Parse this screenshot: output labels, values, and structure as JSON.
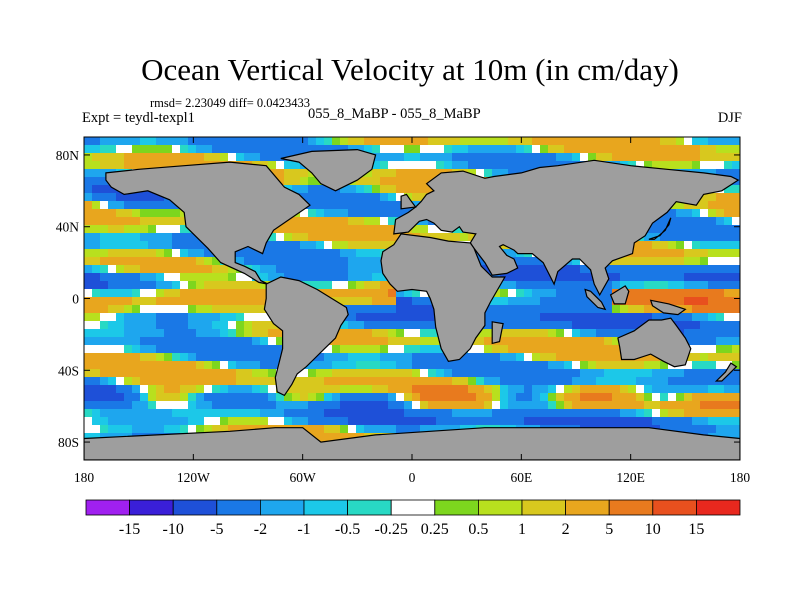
{
  "title": "Ocean Vertical Velocity at 10m (in cm/day)",
  "stats": "rmsd= 2.23049 diff= 0.0423433",
  "experiment": "Expt = teydl-texpl1",
  "difference": "055_8_MaBP - 055_8_MaBP",
  "season": "DJF",
  "axes": {
    "lat_ticks": [
      {
        "value": 80,
        "label": "80N"
      },
      {
        "value": 40,
        "label": "40N"
      },
      {
        "value": 0,
        "label": "0"
      },
      {
        "value": -40,
        "label": "40S"
      },
      {
        "value": -80,
        "label": "80S"
      }
    ],
    "lon_ticks": [
      {
        "value": -180,
        "label": "180"
      },
      {
        "value": -120,
        "label": "120W"
      },
      {
        "value": -60,
        "label": "60W"
      },
      {
        "value": 0,
        "label": "0"
      },
      {
        "value": 60,
        "label": "60E"
      },
      {
        "value": 120,
        "label": "120E"
      },
      {
        "value": 180,
        "label": "180"
      }
    ],
    "lon_range": [
      -180,
      180
    ],
    "lat_range": [
      -90,
      90
    ]
  },
  "colorbar": {
    "levels": [
      "-15",
      "-10",
      "-5",
      "-2",
      "-1",
      "-0.5",
      "-0.25",
      "0.25",
      "0.5",
      "1",
      "2",
      "5",
      "10",
      "15"
    ],
    "colors": [
      "#a020f0",
      "#3a1fd8",
      "#1e50d8",
      "#1a78e6",
      "#1ea6ee",
      "#1cc8e8",
      "#28d9c4",
      "#ffffff",
      "#7dd61e",
      "#b8e01e",
      "#d8c81e",
      "#e8a61e",
      "#e87a1e",
      "#e8501e",
      "#e8281e"
    ]
  },
  "land_color": "#9e9e9e"
}
